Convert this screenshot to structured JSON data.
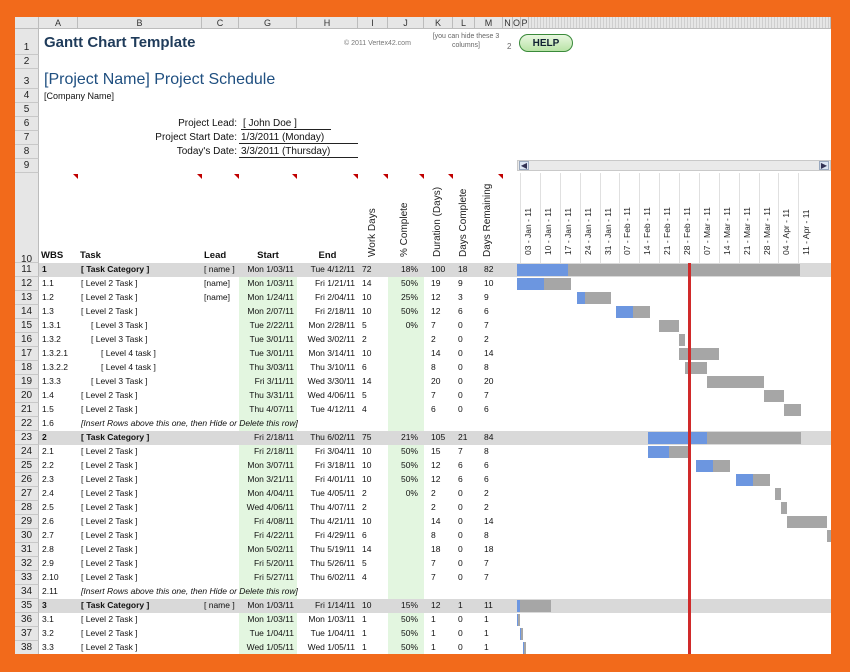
{
  "header": {
    "title": "Gantt Chart Template",
    "copyright": "© 2011 Vertex42.com",
    "hide_note": "[you can hide these 3 columns]",
    "hide_num": "2",
    "help_label": "HELP",
    "project_title": "[Project Name] Project Schedule",
    "company": "[Company Name]",
    "lead_label": "Project Lead:",
    "lead_value": "[ John Doe ]",
    "start_label": "Project Start Date:",
    "start_value": "1/3/2011 (Monday)",
    "today_label": "Today's Date:",
    "today_value": "3/3/2011 (Thursday)"
  },
  "columns": [
    "A",
    "B",
    "C",
    "G",
    "H",
    "I",
    "J",
    "K",
    "L",
    "M",
    "N",
    "O",
    "P"
  ],
  "table_headers": {
    "wbs": "WBS",
    "task": "Task",
    "lead": "Lead",
    "start": "Start",
    "end": "End",
    "work_days": "Work Days",
    "pct": "% Complete",
    "duration": "Duration (Days)",
    "days_complete": "Days Complete",
    "days_remaining": "Days Remaining"
  },
  "dates": [
    "03 - Jan - 11",
    "10 - Jan - 11",
    "17 - Jan - 11",
    "24 - Jan - 11",
    "31 - Jan - 11",
    "07 - Feb - 11",
    "14 - Feb - 11",
    "21 - Feb - 11",
    "28 - Feb - 11",
    "07 - Mar - 11",
    "14 - Mar - 11",
    "21 - Mar - 11",
    "28 - Mar - 11",
    "04 - Apr - 11",
    "11 - Apr - 11"
  ],
  "header_rows": [
    "1",
    "2",
    "3",
    "4",
    "5",
    "6",
    "7",
    "8",
    "9",
    "10"
  ],
  "colors": {
    "done": "#6c96e0",
    "remaining": "#a6a6a6",
    "today": "#d02a2a",
    "category": "#d9d9d9",
    "green": "#e3f6e0"
  },
  "rows": [
    {
      "num": "11",
      "wbs": "1",
      "task": "[ Task Category ]",
      "lead": "[ name ]",
      "start": "Mon 1/03/11",
      "end": "Tue 4/12/11",
      "wd": "72",
      "pct": "18%",
      "dur": "100",
      "dc": "18",
      "dr": "82",
      "cat": true,
      "bs": 0.0,
      "be": 99.5,
      "bd": 18
    },
    {
      "num": "12",
      "wbs": "1.1",
      "task": "[ Level 2 Task ]",
      "lead": "[name]",
      "start": "Mon 1/03/11",
      "end": "Fri 1/21/11",
      "wd": "14",
      "pct": "50%",
      "dur": "19",
      "dc": "9",
      "dr": "10",
      "bs": 0.0,
      "be": 19.0,
      "bd": 9.5
    },
    {
      "num": "13",
      "wbs": "1.2",
      "task": "[ Level 2 Task ]",
      "lead": "[name]",
      "start": "Mon 1/24/11",
      "end": "Fri 2/04/11",
      "wd": "10",
      "pct": "25%",
      "dur": "12",
      "dc": "3",
      "dr": "9",
      "bs": 21.0,
      "be": 33.0,
      "bd": 3
    },
    {
      "num": "14",
      "wbs": "1.3",
      "task": "[ Level 2 Task ]",
      "lead": "",
      "start": "Mon 2/07/11",
      "end": "Fri 2/18/11",
      "wd": "10",
      "pct": "50%",
      "dur": "12",
      "dc": "6",
      "dr": "6",
      "bs": 35.0,
      "be": 47.0,
      "bd": 6
    },
    {
      "num": "15",
      "wbs": "1.3.1",
      "task": "[ Level 3 Task ]",
      "lead": "",
      "start": "Tue 2/22/11",
      "end": "Mon 2/28/11",
      "wd": "5",
      "pct": "0%",
      "dur": "7",
      "dc": "0",
      "dr": "7",
      "ind": 1,
      "bs": 50.0,
      "be": 57.0,
      "bd": 0
    },
    {
      "num": "16",
      "wbs": "1.3.2",
      "task": "[ Level 3 Task ]",
      "lead": "",
      "start": "Tue 3/01/11",
      "end": "Wed 3/02/11",
      "wd": "2",
      "pct": "",
      "dur": "2",
      "dc": "0",
      "dr": "2",
      "ind": 1,
      "bs": 57.0,
      "be": 59.0,
      "bd": 0
    },
    {
      "num": "17",
      "wbs": "1.3.2.1",
      "task": "[ Level 4 task ]",
      "lead": "",
      "start": "Tue 3/01/11",
      "end": "Mon 3/14/11",
      "wd": "10",
      "pct": "",
      "dur": "14",
      "dc": "0",
      "dr": "14",
      "ind": 2,
      "bs": 57.0,
      "be": 71.0,
      "bd": 0
    },
    {
      "num": "18",
      "wbs": "1.3.2.2",
      "task": "[ Level 4 task ]",
      "lead": "",
      "start": "Thu 3/03/11",
      "end": "Thu 3/10/11",
      "wd": "6",
      "pct": "",
      "dur": "8",
      "dc": "0",
      "dr": "8",
      "ind": 2,
      "bs": 59.0,
      "be": 67.0,
      "bd": 0
    },
    {
      "num": "19",
      "wbs": "1.3.3",
      "task": "[ Level 3 Task ]",
      "lead": "",
      "start": "Fri 3/11/11",
      "end": "Wed 3/30/11",
      "wd": "14",
      "pct": "",
      "dur": "20",
      "dc": "0",
      "dr": "20",
      "ind": 1,
      "bs": 67.0,
      "be": 87.0,
      "bd": 0
    },
    {
      "num": "20",
      "wbs": "1.4",
      "task": "[ Level 2 Task ]",
      "lead": "",
      "start": "Thu 3/31/11",
      "end": "Wed 4/06/11",
      "wd": "5",
      "pct": "",
      "dur": "7",
      "dc": "0",
      "dr": "7",
      "bs": 87.0,
      "be": 94.0,
      "bd": 0
    },
    {
      "num": "21",
      "wbs": "1.5",
      "task": "[ Level 2 Task ]",
      "lead": "",
      "start": "Thu 4/07/11",
      "end": "Tue 4/12/11",
      "wd": "4",
      "pct": "",
      "dur": "6",
      "dc": "0",
      "dr": "6",
      "bs": 94.0,
      "be": 100.0,
      "bd": 0
    },
    {
      "num": "22",
      "wbs": "1.6",
      "task": "[Insert Rows above this one, then Hide or Delete this row]",
      "note": true
    },
    {
      "num": "23",
      "wbs": "2",
      "task": "[ Task Category ]",
      "lead": "",
      "start": "Fri 2/18/11",
      "end": "Thu 6/02/11",
      "wd": "75",
      "pct": "21%",
      "dur": "105",
      "dc": "21",
      "dr": "84",
      "cat": true,
      "bs": 46.0,
      "be": 100.0,
      "bd": 21
    },
    {
      "num": "24",
      "wbs": "2.1",
      "task": "[ Level 2 Task ]",
      "lead": "",
      "start": "Fri 2/18/11",
      "end": "Fri 3/04/11",
      "wd": "10",
      "pct": "50%",
      "dur": "15",
      "dc": "7",
      "dr": "8",
      "bs": 46.0,
      "be": 61.0,
      "bd": 7.5
    },
    {
      "num": "25",
      "wbs": "2.2",
      "task": "[ Level 2 Task ]",
      "lead": "",
      "start": "Mon 3/07/11",
      "end": "Fri 3/18/11",
      "wd": "10",
      "pct": "50%",
      "dur": "12",
      "dc": "6",
      "dr": "6",
      "bs": 63.0,
      "be": 75.0,
      "bd": 6
    },
    {
      "num": "26",
      "wbs": "2.3",
      "task": "[ Level 2 Task ]",
      "lead": "",
      "start": "Mon 3/21/11",
      "end": "Fri 4/01/11",
      "wd": "10",
      "pct": "50%",
      "dur": "12",
      "dc": "6",
      "dr": "6",
      "bs": 77.0,
      "be": 89.0,
      "bd": 6
    },
    {
      "num": "27",
      "wbs": "2.4",
      "task": "[ Level 2 Task ]",
      "lead": "",
      "start": "Mon 4/04/11",
      "end": "Tue 4/05/11",
      "wd": "2",
      "pct": "0%",
      "dur": "2",
      "dc": "0",
      "dr": "2",
      "bs": 91.0,
      "be": 93.0,
      "bd": 0
    },
    {
      "num": "28",
      "wbs": "2.5",
      "task": "[ Level 2 Task ]",
      "lead": "",
      "start": "Wed 4/06/11",
      "end": "Thu 4/07/11",
      "wd": "2",
      "pct": "",
      "dur": "2",
      "dc": "0",
      "dr": "2",
      "bs": 93.0,
      "be": 95.0,
      "bd": 0
    },
    {
      "num": "29",
      "wbs": "2.6",
      "task": "[ Level 2 Task ]",
      "lead": "",
      "start": "Fri 4/08/11",
      "end": "Thu 4/21/11",
      "wd": "10",
      "pct": "",
      "dur": "14",
      "dc": "0",
      "dr": "14",
      "bs": 95.0,
      "be": 109.0,
      "bd": 0
    },
    {
      "num": "30",
      "wbs": "2.7",
      "task": "[ Level 2 Task ]",
      "lead": "",
      "start": "Fri 4/22/11",
      "end": "Fri 4/29/11",
      "wd": "6",
      "pct": "",
      "dur": "8",
      "dc": "0",
      "dr": "8",
      "bs": 109.0,
      "be": 117.0,
      "bd": 0
    },
    {
      "num": "31",
      "wbs": "2.8",
      "task": "[ Level 2 Task ]",
      "lead": "",
      "start": "Mon 5/02/11",
      "end": "Thu 5/19/11",
      "wd": "14",
      "pct": "",
      "dur": "18",
      "dc": "0",
      "dr": "18",
      "bs": 119.0,
      "be": 137.0,
      "bd": 0
    },
    {
      "num": "32",
      "wbs": "2.9",
      "task": "[ Level 2 Task ]",
      "lead": "",
      "start": "Fri 5/20/11",
      "end": "Thu 5/26/11",
      "wd": "5",
      "pct": "",
      "dur": "7",
      "dc": "0",
      "dr": "7",
      "bs": 137.0,
      "be": 144.0,
      "bd": 0
    },
    {
      "num": "33",
      "wbs": "2.10",
      "task": "[ Level 2 Task ]",
      "lead": "",
      "start": "Fri 5/27/11",
      "end": "Thu 6/02/11",
      "wd": "4",
      "pct": "",
      "dur": "7",
      "dc": "0",
      "dr": "7",
      "bs": 144.0,
      "be": 151.0,
      "bd": 0
    },
    {
      "num": "34",
      "wbs": "2.11",
      "task": "[Insert Rows above this one, then Hide or Delete this row]",
      "note": true
    },
    {
      "num": "35",
      "wbs": "3",
      "task": "[ Task Category ]",
      "lead": "[ name ]",
      "start": "Mon 1/03/11",
      "end": "Fri 1/14/11",
      "wd": "10",
      "pct": "15%",
      "dur": "12",
      "dc": "1",
      "dr": "11",
      "cat": true,
      "bs": 0.0,
      "be": 12.0,
      "bd": 1
    },
    {
      "num": "36",
      "wbs": "3.1",
      "task": "[ Level 2 Task ]",
      "lead": "",
      "start": "Mon 1/03/11",
      "end": "Mon 1/03/11",
      "wd": "1",
      "pct": "50%",
      "dur": "1",
      "dc": "0",
      "dr": "1",
      "bs": 0.0,
      "be": 1.0,
      "bd": 0.5
    },
    {
      "num": "37",
      "wbs": "3.2",
      "task": "[ Level 2 Task ]",
      "lead": "",
      "start": "Tue 1/04/11",
      "end": "Tue 1/04/11",
      "wd": "1",
      "pct": "50%",
      "dur": "1",
      "dc": "0",
      "dr": "1",
      "bs": 1.0,
      "be": 2.0,
      "bd": 0.5
    },
    {
      "num": "38",
      "wbs": "3.3",
      "task": "[ Level 2 Task ]",
      "lead": "",
      "start": "Wed 1/05/11",
      "end": "Wed 1/05/11",
      "wd": "1",
      "pct": "50%",
      "dur": "1",
      "dc": "0",
      "dr": "1",
      "bs": 2.0,
      "be": 3.0,
      "bd": 0.5
    }
  ],
  "today_day": 59
}
